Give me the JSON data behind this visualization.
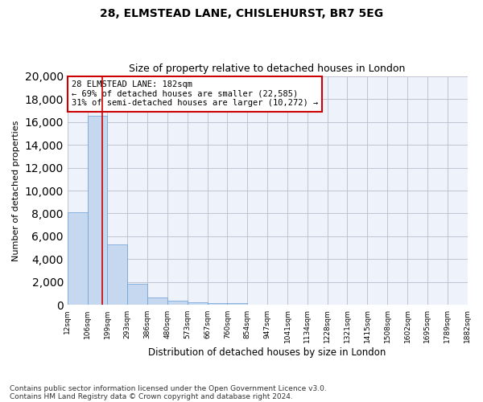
{
  "title_line1": "28, ELMSTEAD LANE, CHISLEHURST, BR7 5EG",
  "title_line2": "Size of property relative to detached houses in London",
  "xlabel": "Distribution of detached houses by size in London",
  "ylabel": "Number of detached properties",
  "bar_values": [
    8100,
    16500,
    5300,
    1850,
    650,
    350,
    270,
    200,
    170,
    0,
    0,
    0,
    0,
    0,
    0,
    0,
    0,
    0,
    0,
    0
  ],
  "bar_labels": [
    "12sqm",
    "106sqm",
    "199sqm",
    "293sqm",
    "386sqm",
    "480sqm",
    "573sqm",
    "667sqm",
    "760sqm",
    "854sqm",
    "947sqm",
    "1041sqm",
    "1134sqm",
    "1228sqm",
    "1321sqm",
    "1415sqm",
    "1508sqm",
    "1602sqm",
    "1695sqm",
    "1789sqm",
    "1882sqm"
  ],
  "bar_color": "#c5d8f0",
  "bar_edge_color": "#6a9fd4",
  "grid_color": "#bbbbcc",
  "bg_color": "#eef2fb",
  "annotation_box_color": "#cc0000",
  "annotation_line1": "28 ELMSTEAD LANE: 182sqm",
  "annotation_line2": "← 69% of detached houses are smaller (22,585)",
  "annotation_line3": "31% of semi-detached houses are larger (10,272) →",
  "vline_x": 1.75,
  "ylim_max": 20000,
  "yticks": [
    0,
    2000,
    4000,
    6000,
    8000,
    10000,
    12000,
    14000,
    16000,
    18000,
    20000
  ],
  "footer_line1": "Contains HM Land Registry data © Crown copyright and database right 2024.",
  "footer_line2": "Contains public sector information licensed under the Open Government Licence v3.0.",
  "title_fontsize": 10,
  "subtitle_fontsize": 9,
  "xlabel_fontsize": 8.5,
  "ylabel_fontsize": 8,
  "tick_fontsize": 6.5,
  "annotation_fontsize": 7.5,
  "footer_fontsize": 6.5
}
